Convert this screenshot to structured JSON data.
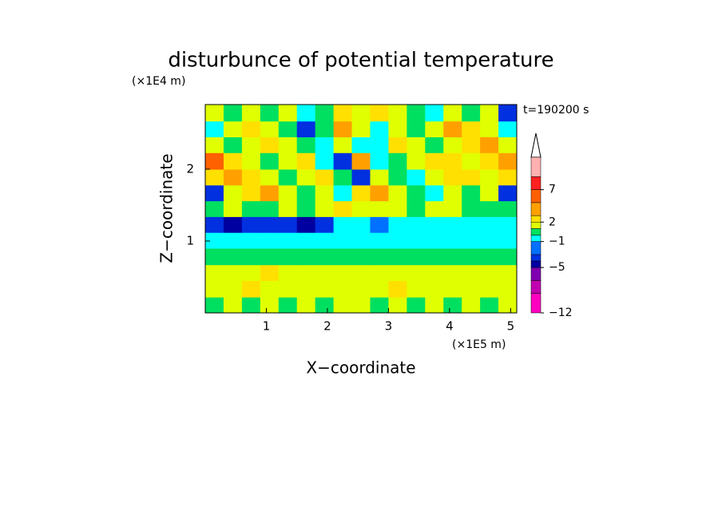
{
  "chart_data": {
    "type": "contourf",
    "title": "disturbunce of potential temperature",
    "y_unit": "(×1E4 m)",
    "x_unit": "(×1E5 m)",
    "time_label": "t=190200 s",
    "xlabel": "X−coordinate",
    "ylabel": "Z−coordinate",
    "xlim": [
      0,
      5.1
    ],
    "ylim": [
      0,
      2.9
    ],
    "xticks": [
      1,
      2,
      3,
      4,
      5
    ],
    "yticks": [
      1,
      2
    ],
    "xbins": [
      0,
      0.3,
      0.6,
      0.9,
      1.2,
      1.5,
      1.8,
      2.1,
      2.4,
      2.7,
      3.0,
      3.3,
      3.6,
      3.9,
      4.2,
      4.5,
      4.8,
      5.1
    ],
    "ybins": [
      0,
      0.22,
      0.45,
      0.67,
      0.9,
      1.12,
      1.34,
      1.56,
      1.78,
      2.0,
      2.23,
      2.45,
      2.67,
      2.9
    ],
    "z": [
      [
        0.5,
        1.5,
        0.5,
        1.5,
        0.5,
        1.5,
        0.5,
        1.5,
        1.5,
        0.5,
        1.5,
        0.5,
        1.5,
        0.5,
        1.5,
        0.5,
        1.5
      ],
      [
        1.5,
        1.5,
        2.5,
        1.5,
        1.5,
        1.5,
        1.5,
        1.5,
        1.5,
        1.5,
        2.5,
        1.5,
        1.5,
        1.5,
        1.5,
        1.5,
        1.5
      ],
      [
        1.5,
        1.5,
        1.5,
        2.5,
        1.5,
        1.5,
        1.5,
        1.5,
        1.5,
        1.5,
        1.5,
        1.5,
        1.5,
        1.5,
        1.5,
        1.5,
        1.5
      ],
      [
        0.5,
        0.5,
        0.5,
        0.5,
        0.5,
        0.5,
        0.5,
        0.5,
        0.5,
        0.5,
        0.5,
        0.5,
        0.5,
        0.5,
        0.5,
        0.5,
        0.5
      ],
      [
        -0.5,
        -0.5,
        -0.5,
        -0.5,
        -0.5,
        -0.5,
        -0.5,
        -0.5,
        -0.5,
        -0.5,
        -0.5,
        -0.5,
        -0.5,
        -0.5,
        -0.5,
        -0.5,
        -0.5
      ],
      [
        -3.5,
        -4.5,
        -3.5,
        -3.5,
        -3.5,
        -4.5,
        -3.5,
        -0.5,
        -0.5,
        -2,
        -0.5,
        -0.5,
        -0.5,
        -0.5,
        -0.5,
        -0.5,
        -0.5
      ],
      [
        0.5,
        1.5,
        0.5,
        0.5,
        1.5,
        0.5,
        1.5,
        2.5,
        1.5,
        1.5,
        1.5,
        0.5,
        1.5,
        1.5,
        0.5,
        0.5,
        0.5
      ],
      [
        -3.5,
        1.5,
        2.5,
        4,
        1.5,
        0.5,
        1.5,
        -0.5,
        2.5,
        4,
        1.5,
        0.5,
        -0.5,
        1.5,
        0.5,
        1.5,
        -3.5
      ],
      [
        2.5,
        4,
        2.5,
        1.5,
        0.5,
        1.5,
        2.5,
        0.5,
        -3.5,
        1.5,
        0.5,
        -0.5,
        1.5,
        2.5,
        2.5,
        1.5,
        2.5
      ],
      [
        6,
        2.5,
        1.5,
        0.5,
        1.5,
        2.5,
        -0.5,
        -3.5,
        4,
        -0.5,
        0.5,
        1.5,
        2.5,
        2.5,
        1.5,
        2.5,
        4
      ],
      [
        1.5,
        0.5,
        1.5,
        2.5,
        1.5,
        0.5,
        -0.5,
        1.5,
        -0.5,
        -0.5,
        2.5,
        1.5,
        0.5,
        1.5,
        2.5,
        4,
        1.5
      ],
      [
        -0.5,
        1.5,
        2.5,
        1.5,
        0.5,
        -3.5,
        0.5,
        4,
        1.5,
        -0.5,
        1.5,
        0.5,
        1.5,
        4,
        2.5,
        1.5,
        -0.5
      ],
      [
        1.5,
        0.5,
        1.5,
        0.5,
        1.5,
        -0.5,
        0.5,
        2.5,
        1.5,
        2.5,
        1.5,
        0.5,
        -0.5,
        1.5,
        0.5,
        1.5,
        -3.5
      ]
    ],
    "colorbar": {
      "levels": [
        -12,
        -9,
        -7,
        -5,
        -4,
        -3,
        -1,
        0,
        1,
        2,
        3,
        5,
        7,
        9,
        12
      ],
      "colors": [
        "#ff00c0",
        "#c000b0",
        "#8000b0",
        "#0000a0",
        "#0030e0",
        "#0070ff",
        "#00ffff",
        "#00e060",
        "#e0ff00",
        "#ffe000",
        "#ffa000",
        "#ff6000",
        "#ff2020",
        "#ffb0b0"
      ],
      "ticks": [
        {
          "value": -12,
          "label": "−12"
        },
        {
          "value": -5,
          "label": "−5"
        },
        {
          "value": -1,
          "label": "−1"
        },
        2,
        7
      ]
    }
  }
}
